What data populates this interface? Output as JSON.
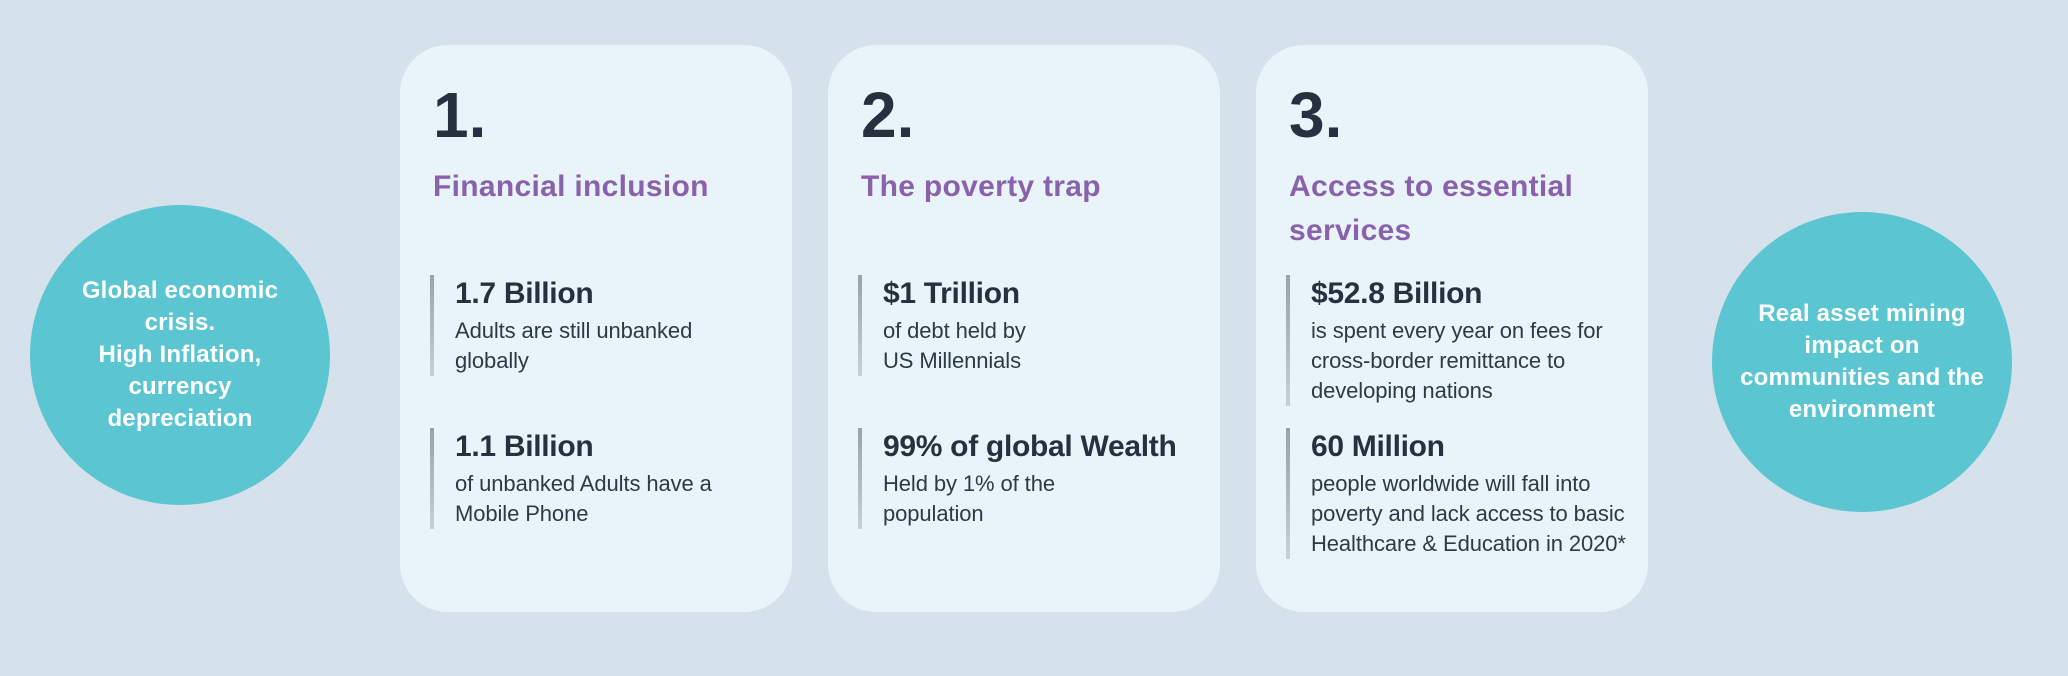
{
  "colors": {
    "page_background": "#d5e2ec",
    "card_background": "#e9f4fa",
    "bubble_teal": "#5bc5d1",
    "heading_purple": "#8a62ab",
    "text_dark": "#25313e",
    "stat_bar_gray": "#a6b0b7"
  },
  "left_circle": {
    "text": "Global economic\ncrisis.\nHigh Inflation,\ncurrency\ndepreciation"
  },
  "right_circle": {
    "text": "Real asset  mining\nimpact on\ncommunities and the\nenvironment"
  },
  "cards": [
    {
      "number": "1.",
      "title": "Financial inclusion",
      "stats": [
        {
          "value": "1.7 Billion",
          "desc": "Adults are still unbanked\nglobally"
        },
        {
          "value": "1.1 Billion",
          "desc": "of unbanked Adults have a\nMobile Phone"
        }
      ]
    },
    {
      "number": "2.",
      "title": "The poverty trap",
      "stats": [
        {
          "value": "$1 Trillion",
          "desc": "of debt held by\nUS Millennials"
        },
        {
          "value": "99% of global Wealth",
          "desc": "Held by 1% of the\npopulation"
        }
      ]
    },
    {
      "number": "3.",
      "title": "Access to essential\nservices",
      "stats": [
        {
          "value": "$52.8 Billion",
          "desc": "is spent every year on fees for\ncross-border remittance to\ndeveloping nations"
        },
        {
          "value": "60 Million",
          "desc": "people worldwide will fall into\npoverty and lack access to basic\nHealthcare & Education in 2020*"
        }
      ]
    }
  ]
}
